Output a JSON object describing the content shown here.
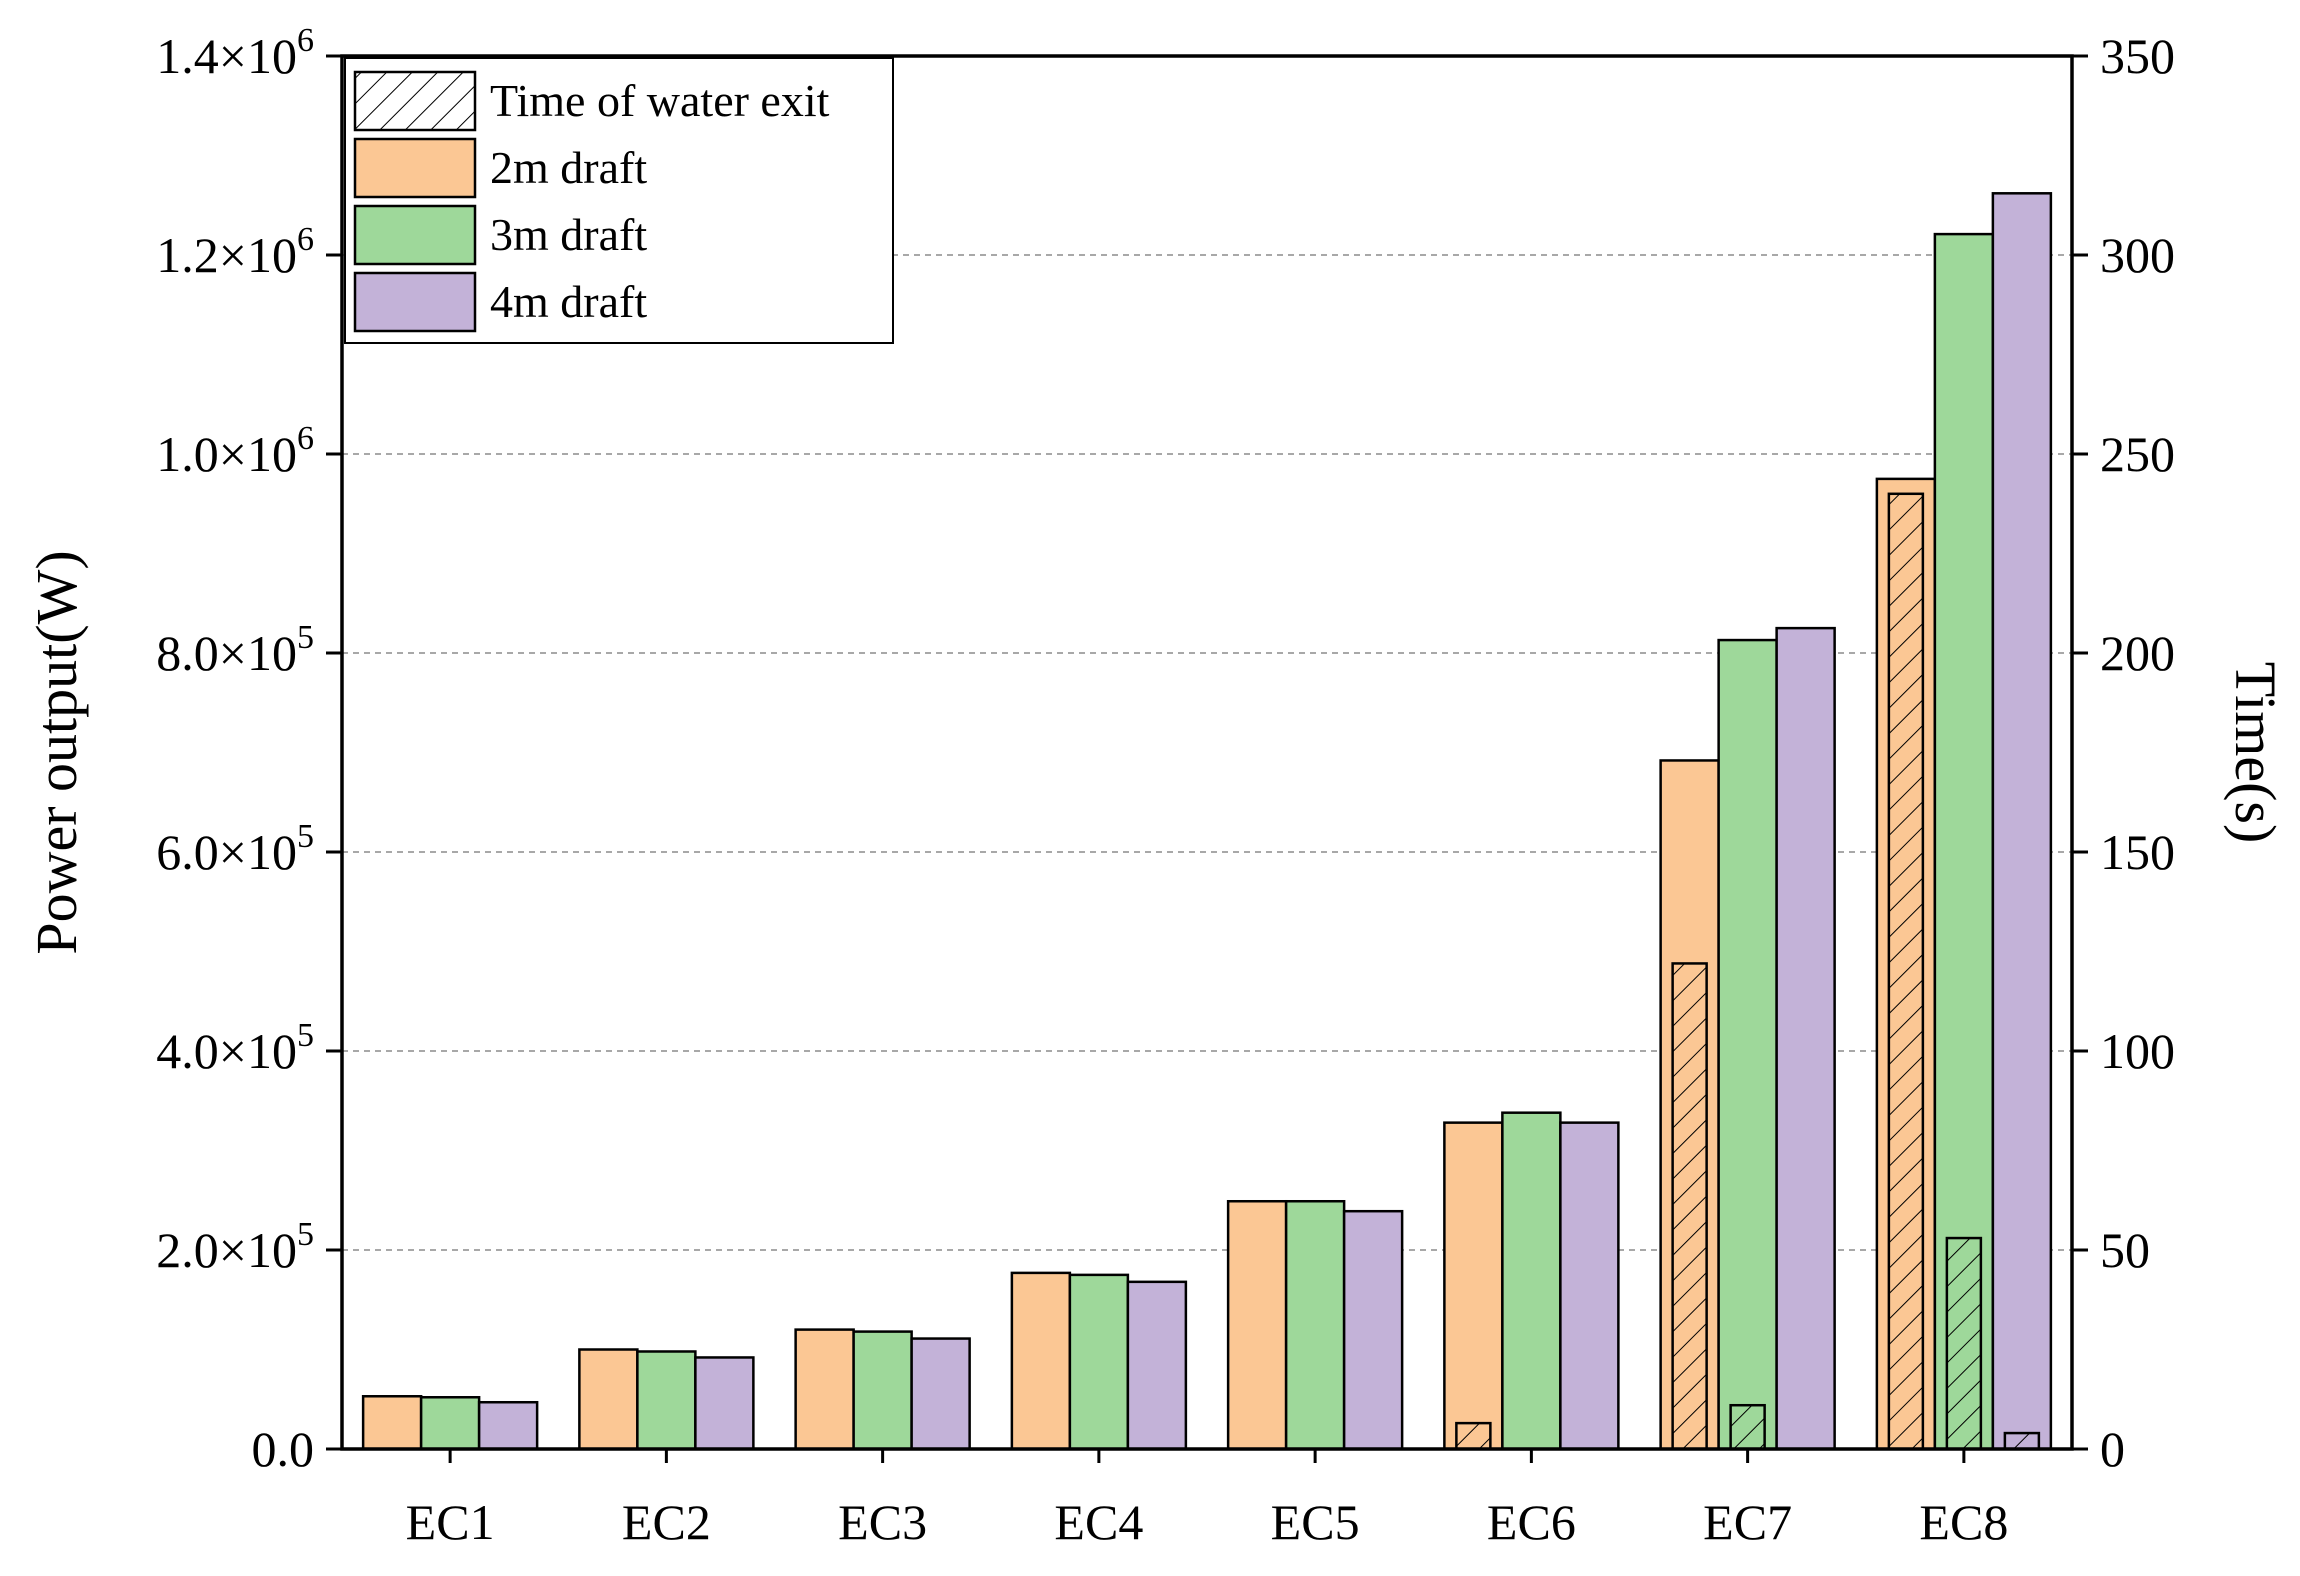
{
  "chart_data": {
    "type": "bar",
    "categories": [
      "EC1",
      "EC2",
      "EC3",
      "EC4",
      "EC5",
      "EC6",
      "EC7",
      "EC8"
    ],
    "series": [
      {
        "name": "2m draft",
        "color": "#fbc794",
        "values": [
          53000,
          100000,
          120000,
          177000,
          249000,
          328000,
          692000,
          975000
        ]
      },
      {
        "name": "3m draft",
        "color": "#9ed89a",
        "values": [
          52000,
          98000,
          118000,
          175000,
          249000,
          338000,
          813000,
          1221000
        ]
      },
      {
        "name": "4m draft",
        "color": "#c3b2d8",
        "values": [
          47000,
          92000,
          111000,
          168000,
          239000,
          328000,
          825000,
          1262000
        ]
      }
    ],
    "time_series": {
      "name": "Time of water exit",
      "unit": "s",
      "values": [
        [
          null,
          null,
          null
        ],
        [
          null,
          null,
          null
        ],
        [
          null,
          null,
          null
        ],
        [
          null,
          null,
          null
        ],
        [
          null,
          null,
          null
        ],
        [
          6.5,
          null,
          null
        ],
        [
          122,
          11,
          null
        ],
        [
          240,
          53,
          4
        ]
      ]
    },
    "ylabel": "Power output(W)",
    "y2label": "Time(s)",
    "xlabel": "",
    "ylim": [
      0,
      1400000
    ],
    "y2lim": [
      0,
      350
    ],
    "yticks": [
      0,
      200000,
      400000,
      600000,
      800000,
      1000000,
      1200000,
      1400000
    ],
    "ytick_labels": [
      {
        "mantissa": "0.0",
        "times": "",
        "exp": ""
      },
      {
        "mantissa": "2.0",
        "times": "×10",
        "exp": "5"
      },
      {
        "mantissa": "4.0",
        "times": "×10",
        "exp": "5"
      },
      {
        "mantissa": "6.0",
        "times": "×10",
        "exp": "5"
      },
      {
        "mantissa": "8.0",
        "times": "×10",
        "exp": "5"
      },
      {
        "mantissa": "1.0",
        "times": "×10",
        "exp": "6"
      },
      {
        "mantissa": "1.2",
        "times": "×10",
        "exp": "6"
      },
      {
        "mantissa": "1.4",
        "times": "×10",
        "exp": "6"
      }
    ],
    "y2ticks": [
      0,
      50,
      100,
      150,
      200,
      250,
      300,
      350
    ],
    "y2tick_labels": [
      "0",
      "50",
      "100",
      "150",
      "200",
      "250",
      "300",
      "350"
    ],
    "grid": "horizontal dashed",
    "legend": {
      "position": "top-left",
      "entries": [
        {
          "label": "Time of water exit",
          "style": "hatch"
        },
        {
          "label": "2m draft",
          "style": "fill",
          "color": "#fbc794"
        },
        {
          "label": "3m draft",
          "style": "fill",
          "color": "#9ed89a"
        },
        {
          "label": "4m draft",
          "style": "fill",
          "color": "#c3b2d8"
        }
      ]
    }
  }
}
